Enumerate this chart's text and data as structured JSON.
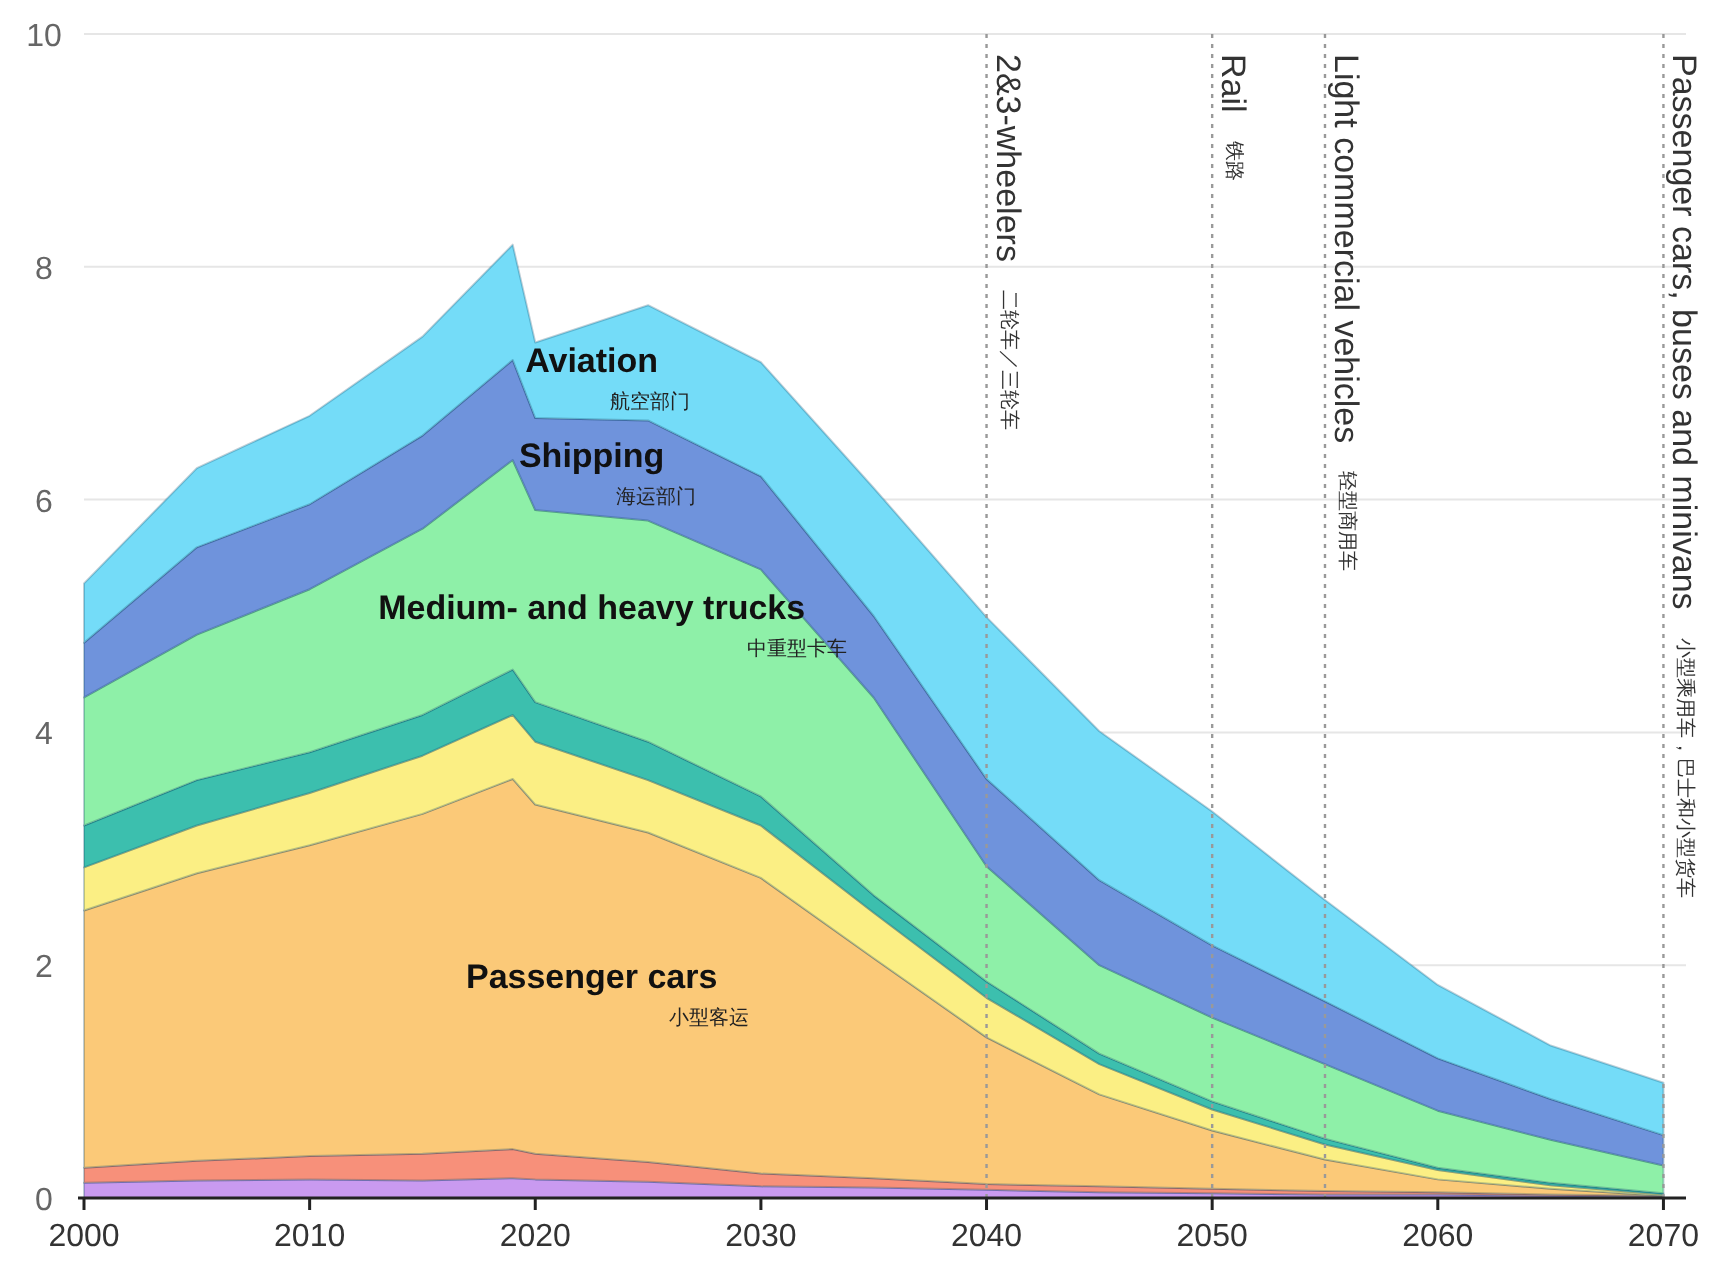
{
  "chart_data": {
    "type": "area",
    "stacked": true,
    "x": [
      2000,
      2005,
      2010,
      2015,
      2019,
      2020,
      2025,
      2030,
      2035,
      2040,
      2045,
      2050,
      2055,
      2060,
      2065,
      2070
    ],
    "series": [
      {
        "color": "#c99af0",
        "values": [
          0.13,
          0.15,
          0.16,
          0.15,
          0.17,
          0.16,
          0.14,
          0.1,
          0.09,
          0.07,
          0.05,
          0.04,
          0.03,
          0.03,
          0.02,
          0.01
        ]
      },
      {
        "color": "#f7907a",
        "values": [
          0.13,
          0.17,
          0.2,
          0.23,
          0.25,
          0.22,
          0.17,
          0.11,
          0.08,
          0.05,
          0.05,
          0.04,
          0.03,
          0.02,
          0.01,
          0.01
        ]
      },
      {
        "name": "Passenger cars",
        "color": "#fbc978",
        "values": [
          2.21,
          2.47,
          2.67,
          2.92,
          3.18,
          3.0,
          2.83,
          2.54,
          1.89,
          1.26,
          0.79,
          0.5,
          0.27,
          0.11,
          0.05,
          0
        ]
      },
      {
        "color": "#fbef84",
        "values": [
          0.37,
          0.41,
          0.45,
          0.5,
          0.55,
          0.54,
          0.45,
          0.45,
          0.39,
          0.34,
          0.26,
          0.18,
          0.13,
          0.08,
          0.03,
          0.01
        ]
      },
      {
        "color": "#3cbfae",
        "values": [
          0.36,
          0.39,
          0.35,
          0.35,
          0.39,
          0.34,
          0.33,
          0.25,
          0.15,
          0.14,
          0.09,
          0.07,
          0.05,
          0.02,
          0.02,
          0.01
        ]
      },
      {
        "name": "Medium- and heavy trucks",
        "color": "#8ef0a8",
        "values": [
          1.1,
          1.25,
          1.4,
          1.6,
          1.8,
          1.65,
          1.9,
          1.95,
          1.7,
          0.99,
          0.76,
          0.72,
          0.64,
          0.49,
          0.37,
          0.24
        ]
      },
      {
        "name": "Shipping",
        "color": "#6f93dc",
        "values": [
          0.47,
          0.75,
          0.73,
          0.8,
          0.86,
          0.79,
          0.86,
          0.8,
          0.7,
          0.75,
          0.73,
          0.62,
          0.54,
          0.45,
          0.35,
          0.26
        ]
      },
      {
        "name": "Aviation",
        "color": "#74dcf8",
        "values": [
          0.51,
          0.68,
          0.76,
          0.85,
          0.99,
          0.65,
          0.99,
          0.98,
          1.1,
          1.39,
          1.28,
          1.15,
          0.87,
          0.63,
          0.46,
          0.45
        ]
      }
    ],
    "xlim": [
      2000,
      2071
    ],
    "ylim": [
      0,
      10
    ],
    "xticks": [
      2000,
      2010,
      2020,
      2030,
      2040,
      2050,
      2060,
      2070
    ],
    "yticks": [
      0,
      2,
      4,
      6,
      8,
      10
    ],
    "grid": "y",
    "ref_lines": [
      {
        "axis": "x",
        "value": 2040,
        "label": "2&3-wheelers",
        "color": "#999999",
        "line_style": "dotted"
      },
      {
        "axis": "x",
        "value": 2050,
        "label": "Rail",
        "color": "#999999",
        "line_style": "dotted"
      },
      {
        "axis": "x",
        "value": 2055,
        "label": "Light commercial vehicles",
        "color": "#999999",
        "line_style": "dotted"
      },
      {
        "axis": "x",
        "value": 2070,
        "label": "Passenger cars, buses and minivans",
        "color": "#999999",
        "line_style": "dotted"
      }
    ],
    "annotations": [
      "小型客运",
      "中重型卡车",
      "海运部门",
      "航空部门",
      "二轮车／三轮车",
      "铁路",
      "轻型商用车",
      "小型乘用车，巴士和小型货车"
    ]
  }
}
